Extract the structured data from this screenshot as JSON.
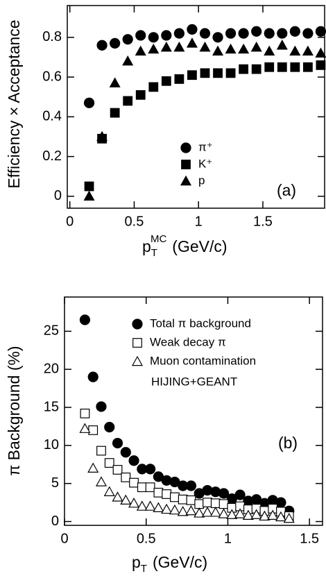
{
  "chart_data": [
    {
      "type": "scatter",
      "y_label": "Efficiency × Acceptance",
      "x_label": {
        "base": "p",
        "sub": "T",
        "sup": "MC",
        "unit": "(GeV/c)"
      },
      "annotation": "(a)",
      "xlim": [
        -0.02,
        1.98
      ],
      "xticks": [
        0,
        0.5,
        1,
        1.5
      ],
      "ylim": [
        -0.06,
        0.96
      ],
      "yticks": [
        0,
        0.2,
        0.4,
        0.6,
        0.8
      ],
      "x": [
        0.15,
        0.25,
        0.35,
        0.45,
        0.55,
        0.65,
        0.75,
        0.85,
        0.95,
        1.05,
        1.15,
        1.25,
        1.35,
        1.45,
        1.55,
        1.65,
        1.75,
        1.85,
        1.95
      ],
      "series": [
        {
          "name": "π⁺",
          "color": "#000000",
          "marker": "circle",
          "filled": true,
          "values": [
            0.47,
            0.76,
            0.77,
            0.79,
            0.81,
            0.8,
            0.81,
            0.82,
            0.84,
            0.82,
            0.8,
            0.82,
            0.82,
            0.83,
            0.82,
            0.82,
            0.83,
            0.82,
            0.83
          ]
        },
        {
          "name": "K⁺",
          "color": "#000000",
          "marker": "square",
          "filled": true,
          "values": [
            0.05,
            0.29,
            0.42,
            0.48,
            0.51,
            0.55,
            0.58,
            0.59,
            0.61,
            0.62,
            0.62,
            0.62,
            0.64,
            0.64,
            0.65,
            0.65,
            0.65,
            0.65,
            0.66
          ]
        },
        {
          "name": "p",
          "color": "#000000",
          "marker": "triangle",
          "filled": true,
          "values": [
            0.0,
            0.3,
            0.57,
            0.68,
            0.73,
            0.74,
            0.75,
            0.75,
            0.77,
            0.75,
            0.73,
            0.74,
            0.74,
            0.75,
            0.73,
            0.76,
            0.73,
            0.73,
            0.72
          ]
        }
      ]
    },
    {
      "type": "scatter",
      "y_label": "π Background (%)",
      "x_label": {
        "base": "p",
        "sub": "T",
        "unit": "(GeV/c)"
      },
      "annotation": "(b)",
      "note": "HIJING+GEANT",
      "xlim": [
        0,
        1.58
      ],
      "xticks": [
        0,
        0.5,
        1,
        1.5
      ],
      "ylim": [
        -0.5,
        29.5
      ],
      "yticks": [
        0,
        5,
        10,
        15,
        20,
        25
      ],
      "x": [
        0.125,
        0.175,
        0.225,
        0.275,
        0.325,
        0.375,
        0.425,
        0.475,
        0.525,
        0.575,
        0.625,
        0.675,
        0.725,
        0.775,
        0.825,
        0.875,
        0.925,
        0.975,
        1.025,
        1.075,
        1.125,
        1.175,
        1.225,
        1.275,
        1.325,
        1.375
      ],
      "series": [
        {
          "name": "Total π background",
          "color": "#000000",
          "marker": "circle",
          "filled": true,
          "values": [
            26.5,
            19,
            15.1,
            12.4,
            10.3,
            9.1,
            8.0,
            6.9,
            6.9,
            5.9,
            5.4,
            5.2,
            4.7,
            4.7,
            3.7,
            4.1,
            3.9,
            3.7,
            3.0,
            3.5,
            2.7,
            2.9,
            2.4,
            2.8,
            2.5,
            1.4
          ]
        },
        {
          "name": "Weak decay π",
          "color": "#000000",
          "marker": "square",
          "filled": false,
          "values": [
            14.2,
            12.0,
            9.3,
            7.7,
            6.8,
            5.8,
            5.1,
            4.5,
            4.5,
            3.8,
            3.6,
            3.2,
            2.9,
            2.8,
            2.3,
            2.5,
            2.4,
            2.3,
            1.8,
            2.0,
            1.6,
            1.7,
            1.4,
            1.7,
            1.3,
            0.7
          ]
        },
        {
          "name": "Muon contamination",
          "color": "#000000",
          "marker": "triangle",
          "filled": false,
          "values": [
            12.2,
            7.0,
            5.2,
            3.9,
            3.2,
            2.8,
            2.4,
            2.0,
            2.0,
            1.8,
            1.6,
            1.5,
            1.3,
            1.4,
            1.1,
            1.2,
            1.2,
            1.0,
            0.9,
            1.0,
            0.8,
            0.9,
            0.7,
            0.8,
            0.6,
            0.4
          ]
        }
      ]
    }
  ]
}
